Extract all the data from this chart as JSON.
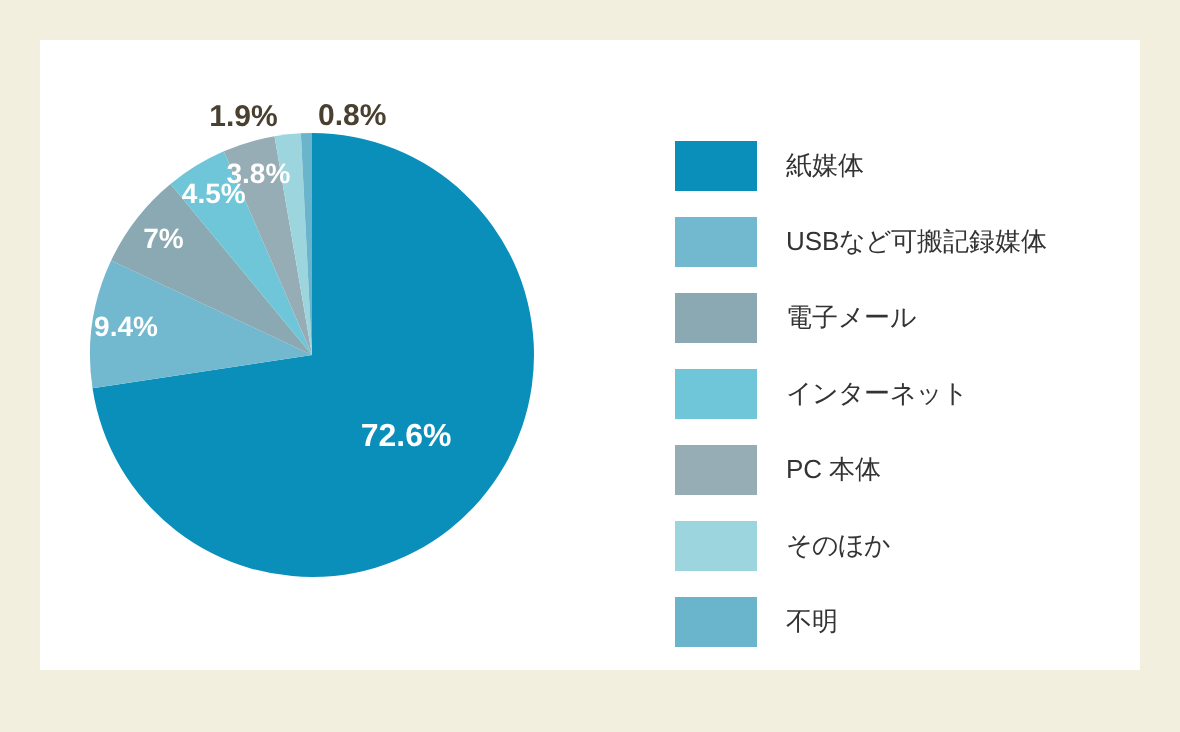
{
  "chart_data": {
    "type": "pie",
    "categories": [
      "紙媒体",
      "USBなど可搬記録媒体",
      "電子メール",
      "インターネット",
      "PC 本体",
      "そのほか",
      "不明"
    ],
    "values": [
      72.6,
      9.4,
      7,
      4.5,
      3.8,
      1.9,
      0.8
    ],
    "colors": [
      "#0a8fbb",
      "#72b8cf",
      "#8aa9b3",
      "#6ec6d8",
      "#97adb5",
      "#9dd5de",
      "#6ab5cb"
    ],
    "value_labels": [
      "72.6%",
      "9.4%",
      "7%",
      "4.5%",
      "3.8%",
      "1.9%",
      "0.8%"
    ],
    "legend": "right"
  }
}
